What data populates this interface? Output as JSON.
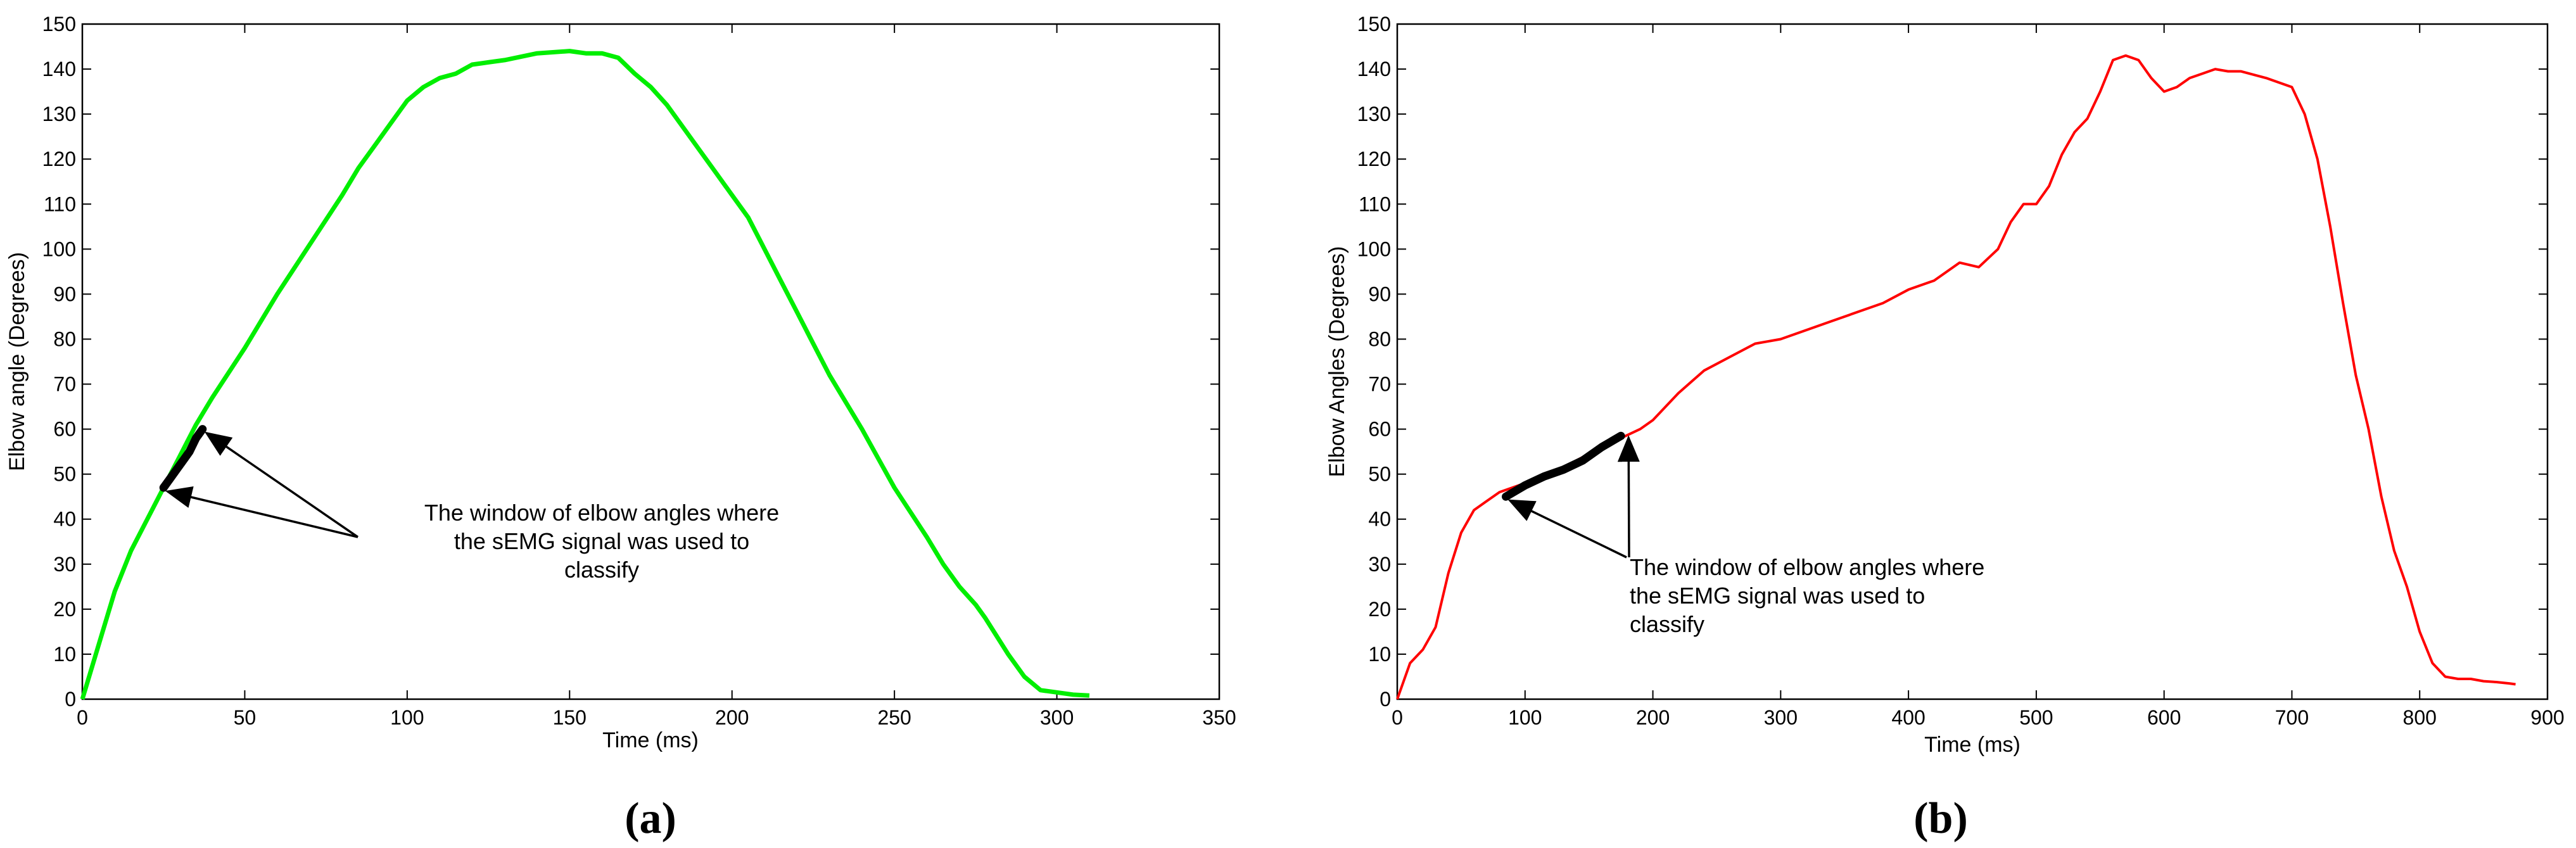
{
  "chart_data": [
    {
      "type": "line",
      "panel_label": "(a)",
      "xlabel": "Time (ms)",
      "ylabel": "Elbow angle (Degrees)",
      "xlim": [
        0,
        350
      ],
      "ylim": [
        0,
        150
      ],
      "xticks": [
        0,
        50,
        100,
        150,
        200,
        250,
        300,
        350
      ],
      "yticks": [
        0,
        10,
        20,
        30,
        40,
        50,
        60,
        70,
        80,
        90,
        100,
        110,
        120,
        130,
        140,
        150
      ],
      "series": [
        {
          "color": "#00ee00",
          "x": [
            0,
            5,
            10,
            15,
            20,
            25,
            30,
            35,
            40,
            50,
            60,
            70,
            80,
            85,
            90,
            95,
            100,
            105,
            110,
            115,
            120,
            125,
            130,
            140,
            150,
            155,
            160,
            165,
            170,
            175,
            180,
            185,
            190,
            195,
            200,
            205,
            210,
            215,
            220,
            225,
            230,
            240,
            250,
            260,
            265,
            270,
            275,
            278,
            285,
            290,
            295,
            300,
            305,
            310
          ],
          "y": [
            0,
            12,
            24,
            33,
            40,
            47,
            54,
            61,
            67,
            78,
            90,
            101,
            112,
            118,
            123,
            128,
            133,
            136,
            138,
            139,
            141,
            141.5,
            142,
            143.5,
            144,
            143.5,
            143.5,
            142.5,
            139,
            136,
            132,
            127,
            122,
            117,
            112,
            107,
            100,
            93,
            86,
            79,
            72,
            60,
            47,
            36,
            30,
            25,
            21,
            18,
            10,
            5,
            2,
            1.5,
            1,
            0.8
          ]
        }
      ],
      "highlight_window": {
        "color": "#000000",
        "x": [
          25,
          27,
          29,
          31,
          33,
          35,
          37
        ],
        "y": [
          47,
          49,
          51,
          53,
          55,
          58,
          60
        ]
      },
      "annotation": {
        "text_lines": [
          "The window of elbow angles where",
          "the sEMG signal was used to",
          "classify"
        ],
        "arrow_targets": [
          [
            37,
            60
          ],
          [
            25,
            47
          ]
        ]
      }
    },
    {
      "type": "line",
      "panel_label": "(b)",
      "xlabel": "Time (ms)",
      "ylabel": "Elbow Angles  (Degrees)",
      "xlim": [
        0,
        900
      ],
      "ylim": [
        0,
        150
      ],
      "xticks": [
        0,
        100,
        200,
        300,
        400,
        500,
        600,
        700,
        800,
        900
      ],
      "yticks": [
        0,
        10,
        20,
        30,
        40,
        50,
        60,
        70,
        80,
        90,
        100,
        110,
        120,
        130,
        140,
        150
      ],
      "series": [
        {
          "color": "#ff0000",
          "x": [
            0,
            10,
            20,
            30,
            40,
            50,
            60,
            70,
            80,
            90,
            100,
            120,
            140,
            160,
            175,
            190,
            200,
            220,
            240,
            260,
            280,
            300,
            320,
            340,
            360,
            380,
            400,
            420,
            440,
            455,
            470,
            480,
            490,
            500,
            510,
            520,
            530,
            540,
            550,
            560,
            570,
            580,
            590,
            600,
            610,
            620,
            630,
            640,
            650,
            660,
            680,
            700,
            710,
            720,
            730,
            740,
            750,
            760,
            770,
            780,
            790,
            800,
            810,
            820,
            830,
            840,
            850,
            860,
            870,
            875
          ],
          "y": [
            0,
            8,
            11,
            16,
            28,
            37,
            42,
            44,
            46,
            47,
            48,
            50,
            53,
            56,
            58,
            60,
            62,
            68,
            73,
            76,
            79,
            80,
            82,
            84,
            86,
            88,
            91,
            93,
            97,
            96,
            100,
            106,
            110,
            110,
            114,
            121,
            126,
            129,
            135,
            142,
            143,
            142,
            138,
            135,
            136,
            138,
            139,
            140,
            139.5,
            139.5,
            138,
            136,
            130,
            120,
            105,
            88,
            72,
            60,
            45,
            33,
            25,
            15,
            8,
            5,
            4.5,
            4.5,
            4,
            3.8,
            3.5,
            3.3
          ]
        }
      ],
      "highlight_window": {
        "color": "#000000",
        "x": [
          85,
          100,
          115,
          130,
          145,
          160,
          175
        ],
        "y": [
          45,
          47.5,
          49.5,
          51,
          53,
          56,
          58.5
        ]
      },
      "annotation": {
        "text_lines": [
          "The window of elbow angles where",
          "the sEMG signal was used to",
          "classify"
        ],
        "arrow_targets": [
          [
            85,
            45
          ],
          [
            178,
            59
          ]
        ]
      }
    }
  ]
}
